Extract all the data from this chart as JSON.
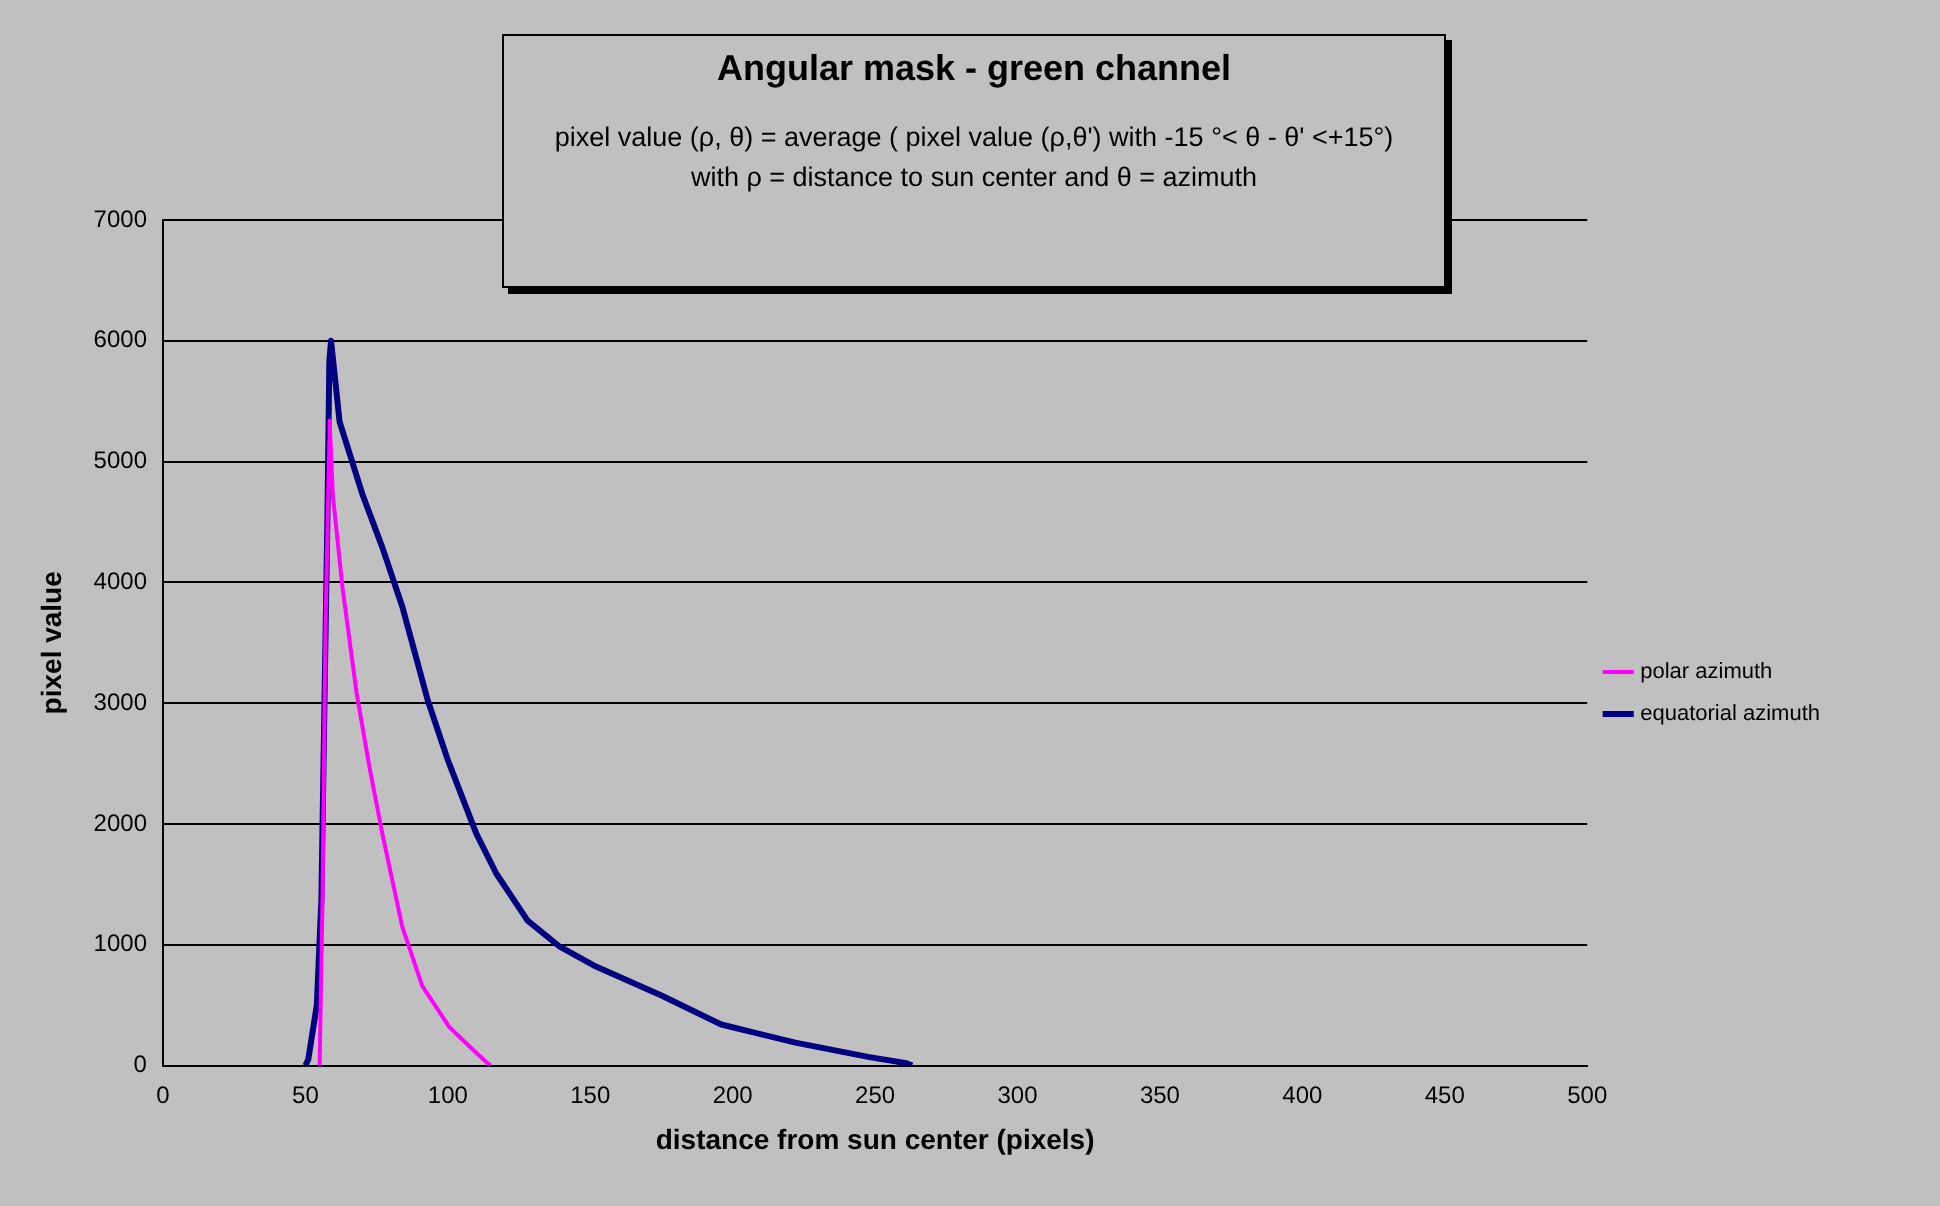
{
  "chart_data": {
    "type": "line",
    "title": "Angular mask - green channel",
    "subtitle": "pixel value (ρ, θ) = average ( pixel value (ρ,θ') with -15 °< θ - θ' <+15°)\nwith  ρ = distance to sun center and θ = azimuth",
    "xlabel": "distance from sun center (pixels)",
    "ylabel": "pixel value",
    "xlim": [
      0,
      500
    ],
    "xticks": [
      0,
      50,
      100,
      150,
      200,
      250,
      300,
      350,
      400,
      450,
      500
    ],
    "ylim": [
      0,
      7000
    ],
    "yticks": [
      0,
      1000,
      2000,
      3000,
      4000,
      5000,
      6000,
      7000
    ],
    "grid": "y",
    "legend": "right",
    "marker": "none",
    "line_style": "solid",
    "series": [
      {
        "name": "equatorial azimuth",
        "color": "#000080",
        "x": [
          50,
          51,
          54,
          55.6,
          56.7,
          57.7,
          58.4,
          59,
          62,
          70,
          77,
          84,
          93,
          100,
          110,
          117,
          128,
          139,
          152,
          175,
          196,
          222,
          248,
          261,
          263
        ],
        "values": [
          0,
          50,
          500,
          1370,
          3020,
          4500,
          5830,
          6000,
          5330,
          4730,
          4290,
          3800,
          3020,
          2530,
          1920,
          1590,
          1200,
          990,
          820,
          580,
          340,
          190,
          70,
          20,
          0
        ]
      },
      {
        "name": "polar azimuth",
        "color": "#ff00ff",
        "x": [
          54.5,
          55,
          56,
          57,
          58.4,
          58.5,
          59.6,
          63,
          68,
          72.5,
          77,
          84,
          91,
          100.5,
          108,
          113,
          115
        ],
        "values": [
          0,
          20,
          1370,
          3570,
          5170,
          5340,
          4730,
          3960,
          3080,
          2470,
          1920,
          1150,
          660,
          320,
          150,
          40,
          0
        ]
      }
    ]
  }
}
